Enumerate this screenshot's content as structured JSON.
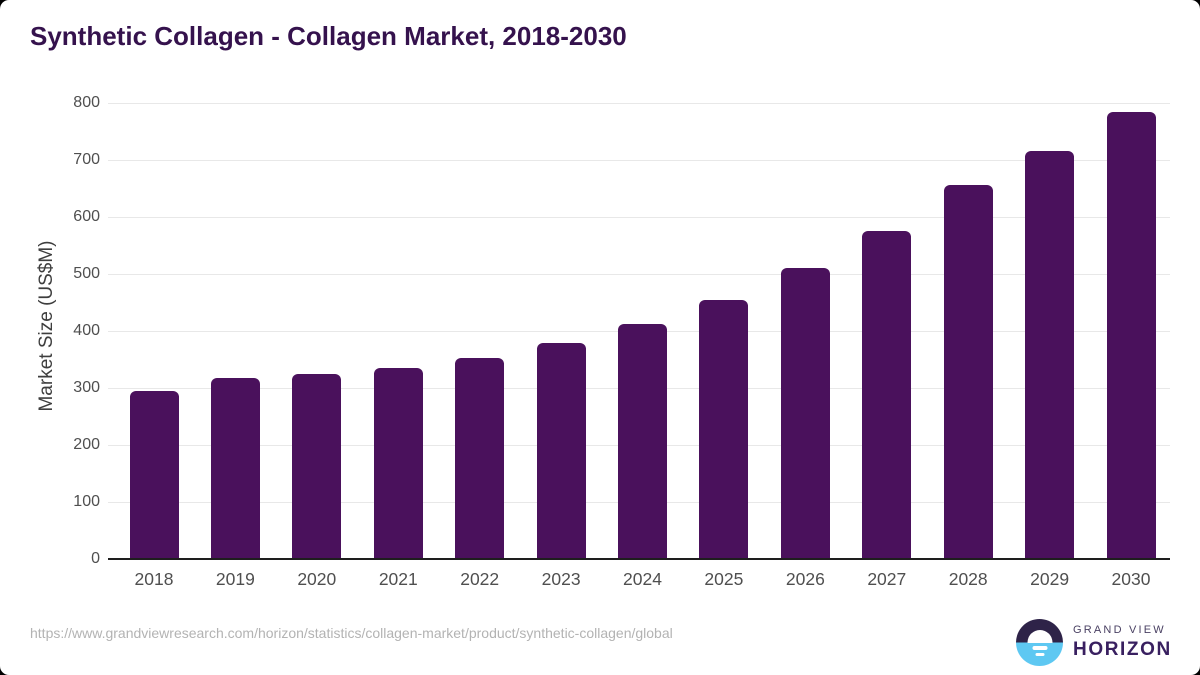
{
  "title": "Synthetic Collagen - Collagen Market, 2018-2030",
  "chart_data": {
    "type": "bar",
    "title": "Synthetic Collagen - Collagen Market, 2018-2030",
    "categories": [
      "2018",
      "2019",
      "2020",
      "2021",
      "2022",
      "2023",
      "2024",
      "2025",
      "2026",
      "2027",
      "2028",
      "2029",
      "2030"
    ],
    "values": [
      295,
      317,
      324,
      336,
      353,
      379,
      413,
      455,
      510,
      575,
      656,
      716,
      785
    ],
    "xlabel": "",
    "ylabel": "Market Size (US$M)",
    "ylim": [
      0,
      800
    ],
    "yticks": [
      0,
      100,
      200,
      300,
      400,
      500,
      600,
      700,
      800
    ],
    "grid": "horizontal-only",
    "legend": "none"
  },
  "colors": {
    "bar": "#4a115c",
    "title": "#35124d",
    "gridline": "#e8e8e8",
    "axis_line": "#1e1e1e",
    "tick_label": "#4f4f4f",
    "source_text": "#b3b3b3",
    "logo_dark": "#2e2348",
    "logo_blue": "#5ec8f2"
  },
  "footer": {
    "source_url": "https://www.grandviewresearch.com/horizon/statistics/collagen-market/product/synthetic-collagen/global",
    "logo": {
      "icon": "horizon-sun-icon",
      "line1": "GRAND VIEW",
      "line2": "HORIZON"
    }
  }
}
